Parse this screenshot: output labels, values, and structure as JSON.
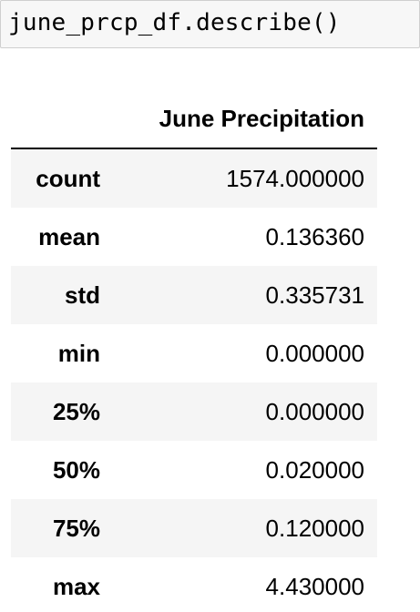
{
  "code_cell": {
    "source": "june_prcp_df.describe()"
  },
  "table": {
    "index_header": "",
    "columns": [
      "June Precipitation"
    ],
    "rows": [
      {
        "index": "count",
        "value": "1574.000000"
      },
      {
        "index": "mean",
        "value": "0.136360"
      },
      {
        "index": "std",
        "value": "0.335731"
      },
      {
        "index": "min",
        "value": "0.000000"
      },
      {
        "index": "25%",
        "value": "0.000000"
      },
      {
        "index": "50%",
        "value": "0.020000"
      },
      {
        "index": "75%",
        "value": "0.120000"
      },
      {
        "index": "max",
        "value": "4.430000"
      }
    ]
  }
}
